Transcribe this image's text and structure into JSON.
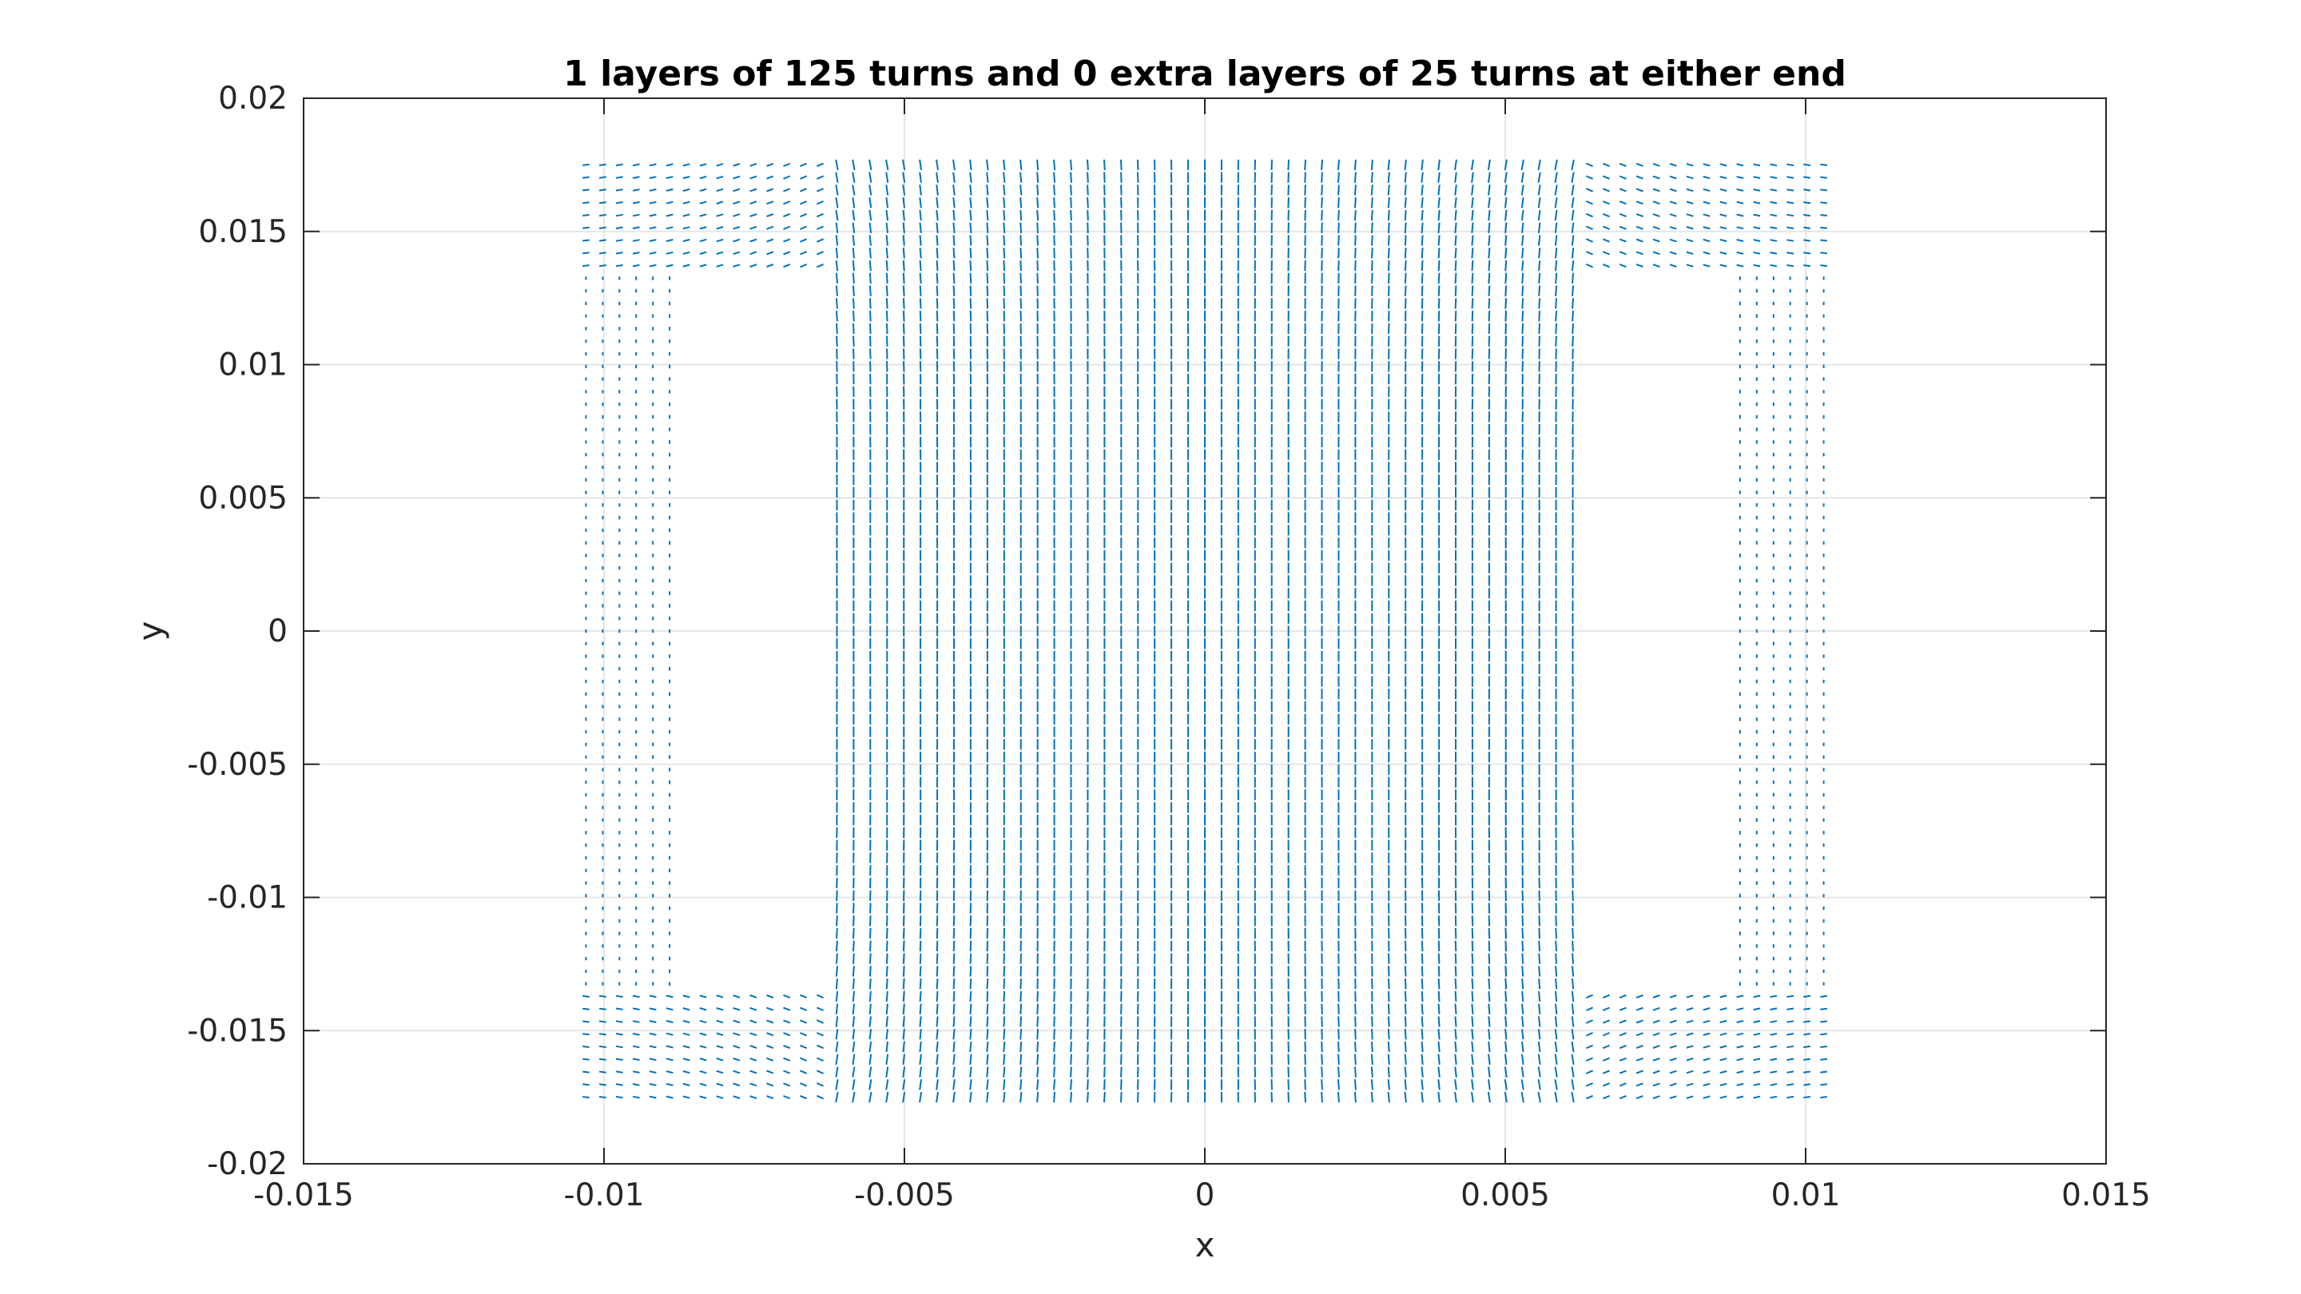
{
  "chart_data": {
    "type": "quiver",
    "title": "1 layers of 125 turns and 0 extra layers of 25 turns at either end",
    "xlabel": "x",
    "ylabel": "y",
    "xlim": [
      -0.015,
      0.015
    ],
    "ylim": [
      -0.02,
      0.02
    ],
    "xticks": [
      -0.015,
      -0.01,
      -0.005,
      0,
      0.005,
      0.01,
      0.015
    ],
    "yticks": [
      -0.02,
      -0.015,
      -0.01,
      -0.005,
      0,
      0.005,
      0.01,
      0.015,
      0.02
    ],
    "xtick_labels": [
      "-0.015",
      "-0.01",
      "-0.005",
      "0",
      "0.005",
      "0.01",
      "0.015"
    ],
    "ytick_labels": [
      "-0.02",
      "-0.015",
      "-0.01",
      "-0.005",
      "0",
      "0.005",
      "0.01",
      "0.015",
      "0.02"
    ],
    "grid": true,
    "legend": "none",
    "vector_color": "#0072BD",
    "field_region": {
      "x_range": [
        -0.0103,
        0.0103
      ],
      "y_range": [
        -0.0175,
        0.0175
      ],
      "x_columns": 75,
      "y_rows": 75
    },
    "empty_windows": [
      {
        "x_range": [
          -0.0087,
          -0.0062
        ],
        "y_range": [
          -0.0135,
          0.0135
        ]
      },
      {
        "x_range": [
          0.0062,
          0.0087
        ],
        "y_range": [
          -0.0135,
          0.0135
        ]
      }
    ],
    "core_bridge_y": [
      0.0135,
      0.0175
    ],
    "center_leg_x": [
      -0.0062,
      0.0062
    ]
  },
  "colors": {
    "axes": "#262626",
    "grid": "#e6e6e6",
    "vectors": "#0072BD"
  }
}
